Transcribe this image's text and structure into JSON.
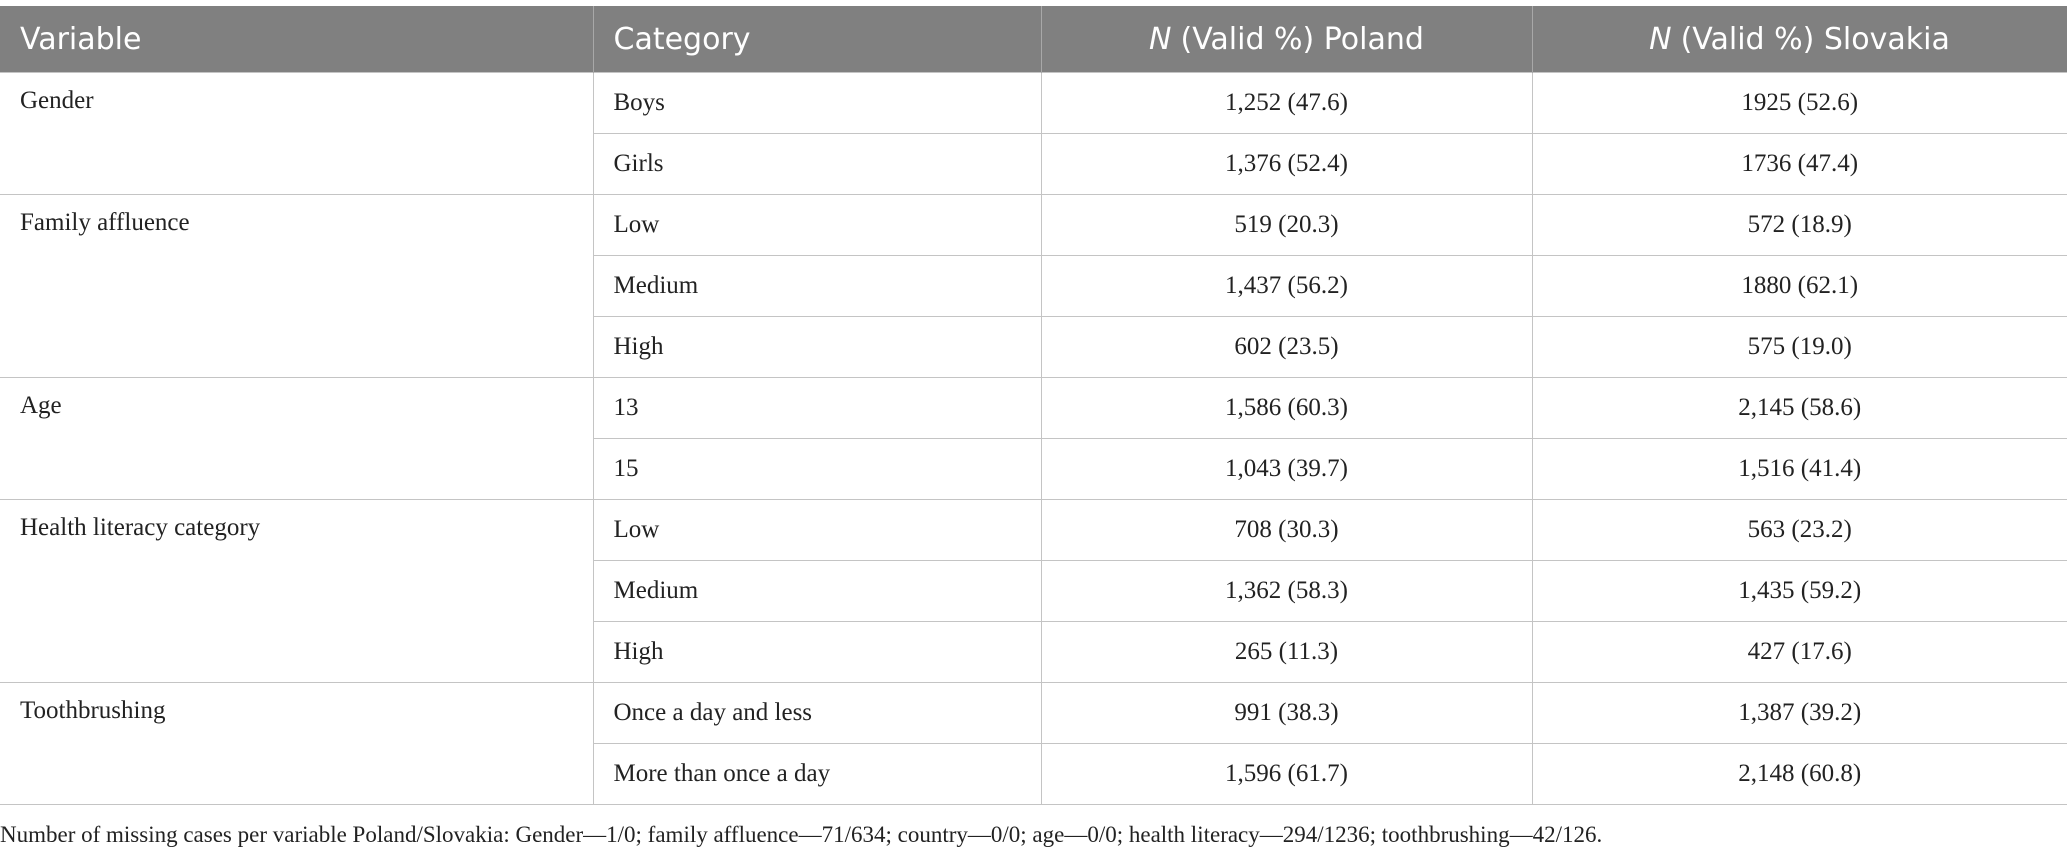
{
  "table": {
    "header": [
      "Variable",
      "Category",
      {
        "em": "N",
        "rest": "(Valid %) Poland"
      },
      {
        "em": "N",
        "rest": "(Valid %) Slovakia"
      }
    ],
    "groups": [
      {
        "variable": "Gender",
        "rows": [
          [
            "Boys",
            "1,252 (47.6)",
            "1925 (52.6)"
          ],
          [
            "Girls",
            "1,376 (52.4)",
            "1736 (47.4)"
          ]
        ]
      },
      {
        "variable": "Family affluence",
        "rows": [
          [
            "Low",
            "519 (20.3)",
            "572 (18.9)"
          ],
          [
            "Medium",
            "1,437 (56.2)",
            "1880 (62.1)"
          ],
          [
            "High",
            "602 (23.5)",
            "575 (19.0)"
          ]
        ]
      },
      {
        "variable": "Age",
        "rows": [
          [
            "13",
            "1,586 (60.3)",
            "2,145 (58.6)"
          ],
          [
            "15",
            "1,043 (39.7)",
            "1,516 (41.4)"
          ]
        ]
      },
      {
        "variable": "Health literacy category",
        "rows": [
          [
            "Low",
            "708 (30.3)",
            "563 (23.2)"
          ],
          [
            "Medium",
            "1,362 (58.3)",
            "1,435 (59.2)"
          ],
          [
            "High",
            "265 (11.3)",
            "427 (17.6)"
          ]
        ]
      },
      {
        "variable": "Toothbrushing",
        "rows": [
          [
            "Once a day and less",
            "991 (38.3)",
            "1,387 (39.2)"
          ],
          [
            "More than once a day",
            "1,596 (61.7)",
            "2,148 (60.8)"
          ]
        ]
      }
    ],
    "footnote": "Number of missing cases per variable Poland/Slovakia: Gender—1/0; family affluence—71/634; country—0/0; age—0/0; health literacy—294/1236; toothbrushing—42/126."
  }
}
